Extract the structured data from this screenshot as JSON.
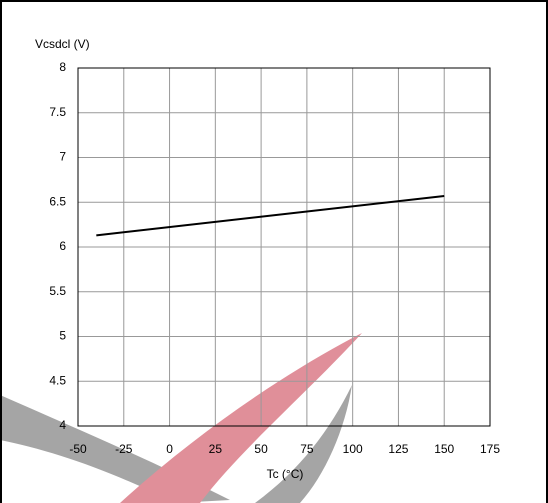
{
  "chart_data": {
    "type": "line",
    "y_label": "Vcsdcl (V)",
    "x_label": "Tc (°C)",
    "x": [
      -40,
      150
    ],
    "values": [
      6.13,
      6.57
    ],
    "color": "#000000",
    "xlim": [
      -50,
      175
    ],
    "xticks": [
      -50,
      -25,
      0,
      25,
      50,
      75,
      100,
      125,
      150,
      175
    ],
    "ylim": [
      4,
      8
    ],
    "yticks": [
      4,
      4.5,
      5,
      5.5,
      6,
      6.5,
      7,
      7.5,
      8
    ],
    "grid": true
  }
}
